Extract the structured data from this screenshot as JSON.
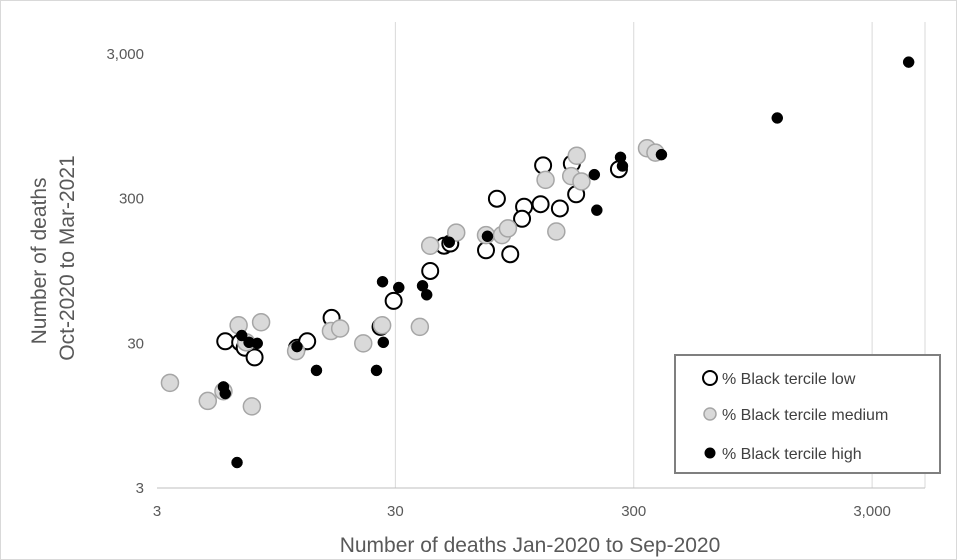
{
  "chart_data": {
    "type": "scatter",
    "title": "",
    "xlabel": "Number of deaths Jan-2020 to Sep-2020",
    "ylabel": "Number of deaths Oct-2020 to Mar-2021",
    "ylabel_lines": [
      "Number of deaths",
      "Oct-2020 to Mar-2021"
    ],
    "x_scale": "log",
    "y_scale": "log",
    "xlim": [
      3,
      5000
    ],
    "ylim": [
      3,
      5000
    ],
    "x_ticks": [
      3,
      30,
      300,
      3000
    ],
    "y_ticks": [
      3,
      30,
      300,
      3000
    ],
    "x_tick_labels": [
      "3",
      "30",
      "300",
      "3,000"
    ],
    "y_tick_labels": [
      "3",
      "30",
      "300",
      "3,000"
    ],
    "grid": "vertical",
    "legend_position": "bottom-right",
    "series": [
      {
        "name": "% Black tercile low",
        "marker": "open-circle",
        "stroke": "#000000",
        "fill": "#ffffff",
        "points": [
          [
            5.8,
            31
          ],
          [
            6.7,
            30.5
          ],
          [
            7.0,
            28
          ],
          [
            7.7,
            24
          ],
          [
            11.6,
            28
          ],
          [
            12.8,
            31
          ],
          [
            16.2,
            45
          ],
          [
            26.0,
            39
          ],
          [
            29.5,
            59
          ],
          [
            42,
            95
          ],
          [
            48,
            142
          ],
          [
            51,
            147
          ],
          [
            72,
            132
          ],
          [
            80,
            300
          ],
          [
            91,
            124
          ],
          [
            104,
            264
          ],
          [
            102,
            218
          ],
          [
            122,
            275
          ],
          [
            125,
            510
          ],
          [
            147,
            257
          ],
          [
            165,
            525
          ],
          [
            172,
            322
          ],
          [
            260,
            480
          ]
        ]
      },
      {
        "name": "% Black tercile medium",
        "marker": "circle",
        "stroke": "#a6a6a6",
        "fill": "#d9d9d9",
        "points": [
          [
            3.4,
            16
          ],
          [
            4.9,
            12
          ],
          [
            5.7,
            14
          ],
          [
            6.6,
            40
          ],
          [
            7.1,
            30.5
          ],
          [
            7.5,
            11
          ],
          [
            8.2,
            42
          ],
          [
            11.5,
            26.5
          ],
          [
            16.1,
            36.5
          ],
          [
            17.6,
            38
          ],
          [
            22.0,
            30
          ],
          [
            26.4,
            40
          ],
          [
            38,
            39
          ],
          [
            42,
            142
          ],
          [
            54,
            175
          ],
          [
            72,
            168
          ],
          [
            84,
            168
          ],
          [
            89,
            187
          ],
          [
            128,
            405
          ],
          [
            142,
            178
          ],
          [
            164,
            430
          ],
          [
            173,
            595
          ],
          [
            181,
            395
          ],
          [
            341,
            670
          ],
          [
            370,
            625
          ]
        ]
      },
      {
        "name": "% Black tercile high",
        "marker": "dot",
        "stroke": "#000000",
        "fill": "#000000",
        "points": [
          [
            5.7,
            15
          ],
          [
            5.8,
            13.5
          ],
          [
            6.5,
            4.5
          ],
          [
            6.8,
            34
          ],
          [
            7.3,
            30.5
          ],
          [
            7.9,
            30
          ],
          [
            11.6,
            28.5
          ],
          [
            14.0,
            19.5
          ],
          [
            25.0,
            19.5
          ],
          [
            26.5,
            80
          ],
          [
            26.7,
            30.5
          ],
          [
            31.0,
            73
          ],
          [
            39.0,
            75
          ],
          [
            40.6,
            65
          ],
          [
            50.5,
            150
          ],
          [
            73.0,
            165
          ],
          [
            205,
            440
          ],
          [
            210,
            250
          ],
          [
            264,
            580
          ],
          [
            269,
            505
          ],
          [
            392,
            605
          ],
          [
            1200,
            1085
          ],
          [
            4270,
            2640
          ]
        ]
      }
    ]
  }
}
